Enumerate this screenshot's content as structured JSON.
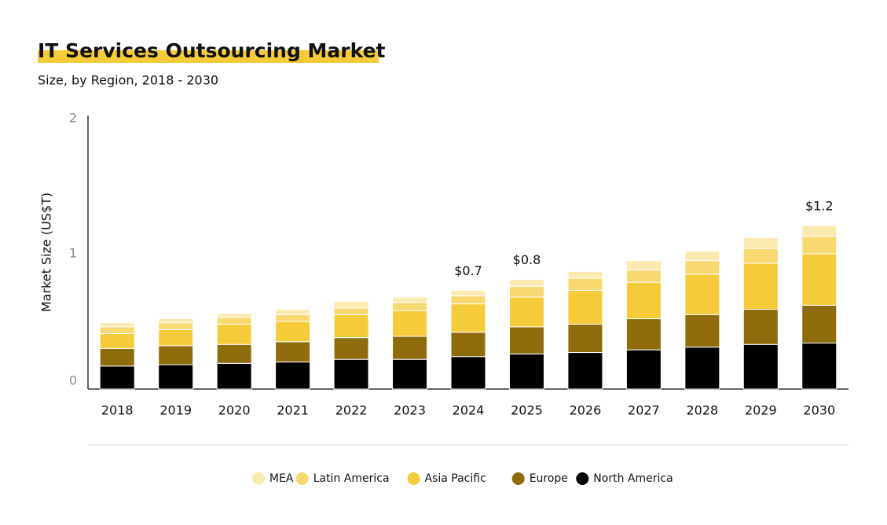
{
  "chart_data": {
    "type": "stacked_bar",
    "title": "IT Services Outsourcing Market",
    "subtitle": "Size, by Region, 2018 - 2030",
    "y_label": "Market Size (US$T)",
    "categories": [
      "2018",
      "2019",
      "2020",
      "2021",
      "2022",
      "2023",
      "2024",
      "2025",
      "2026",
      "2027",
      "2028",
      "2029",
      "2030"
    ],
    "series": [
      {
        "name": "North America",
        "color": "#000000",
        "values": [
          0.17,
          0.18,
          0.19,
          0.2,
          0.22,
          0.22,
          0.24,
          0.26,
          0.27,
          0.29,
          0.31,
          0.33,
          0.34
        ]
      },
      {
        "name": "Europe",
        "color": "#8f6c0b",
        "values": [
          0.13,
          0.14,
          0.14,
          0.15,
          0.16,
          0.17,
          0.18,
          0.2,
          0.21,
          0.23,
          0.24,
          0.26,
          0.28
        ]
      },
      {
        "name": "Asia Pacific",
        "color": "#f6cb3a",
        "values": [
          0.11,
          0.12,
          0.15,
          0.15,
          0.17,
          0.19,
          0.21,
          0.22,
          0.25,
          0.27,
          0.3,
          0.34,
          0.38
        ]
      },
      {
        "name": "Latin America",
        "color": "#f8d870",
        "values": [
          0.05,
          0.05,
          0.05,
          0.05,
          0.05,
          0.06,
          0.06,
          0.08,
          0.09,
          0.09,
          0.1,
          0.11,
          0.13
        ]
      },
      {
        "name": "MEA",
        "color": "#fbeab0",
        "values": [
          0.03,
          0.03,
          0.03,
          0.04,
          0.05,
          0.04,
          0.04,
          0.05,
          0.05,
          0.07,
          0.07,
          0.08,
          0.08
        ]
      }
    ],
    "annotations": [
      {
        "category": "2024",
        "text": "$0.7"
      },
      {
        "category": "2025",
        "text": "$0.8"
      },
      {
        "category": "2030",
        "text": "$1.2"
      }
    ],
    "ylim": [
      0,
      2
    ],
    "yticks": [
      0,
      1,
      2
    ],
    "grid": false
  }
}
